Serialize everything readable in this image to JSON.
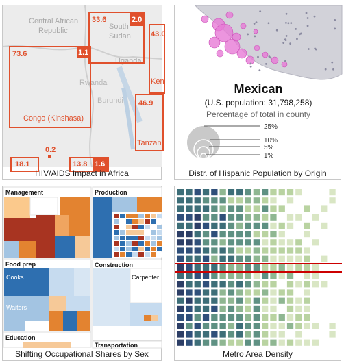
{
  "tiles": [
    {
      "caption": "HIV/AIDS Impact in Africa",
      "map_labels": {
        "car": "Central African",
        "car2": "Republic",
        "south_sudan": "South",
        "south_sudan2": "Sudan",
        "uganda": "Uganda",
        "rwanda": "Rwanda",
        "burundi": "Burundi",
        "congo": "Congo (Kinshasa)",
        "kenya": "Ken",
        "tanzania": "Tanzani"
      },
      "values": {
        "v1": "33.6",
        "v2": "2.0",
        "v3": "43.0",
        "v4": "73.6",
        "v5": "1.1",
        "v6": "46.9",
        "v7": "0.2",
        "v8": "18.1",
        "v9": "13.8",
        "v10": "1.6"
      }
    },
    {
      "caption": "Distr. of Hispanic Population by Origin",
      "title": "Mexican",
      "subtitle": "(U.S. population: 31,798,258)",
      "note": "Percentage of total in county",
      "legend": [
        "25%",
        "10%",
        "5%",
        "1%"
      ]
    },
    {
      "caption": "Shifting Occupational Shares by Sex",
      "labels": {
        "management": "Management",
        "production": "Production",
        "food_prep": "Food prep",
        "construction": "Construction",
        "cooks": "Cooks",
        "carpenters": "Carpenter",
        "waiters": "Waiters",
        "education": "Education",
        "transportation": "Transportation"
      }
    },
    {
      "caption": "Metro Area Density"
    }
  ],
  "colors": {
    "map_red": "#e0502c",
    "bubble_pink": "#e77ad6",
    "heat_dark": "#2c3e66",
    "accent_line": "#cc0000"
  }
}
